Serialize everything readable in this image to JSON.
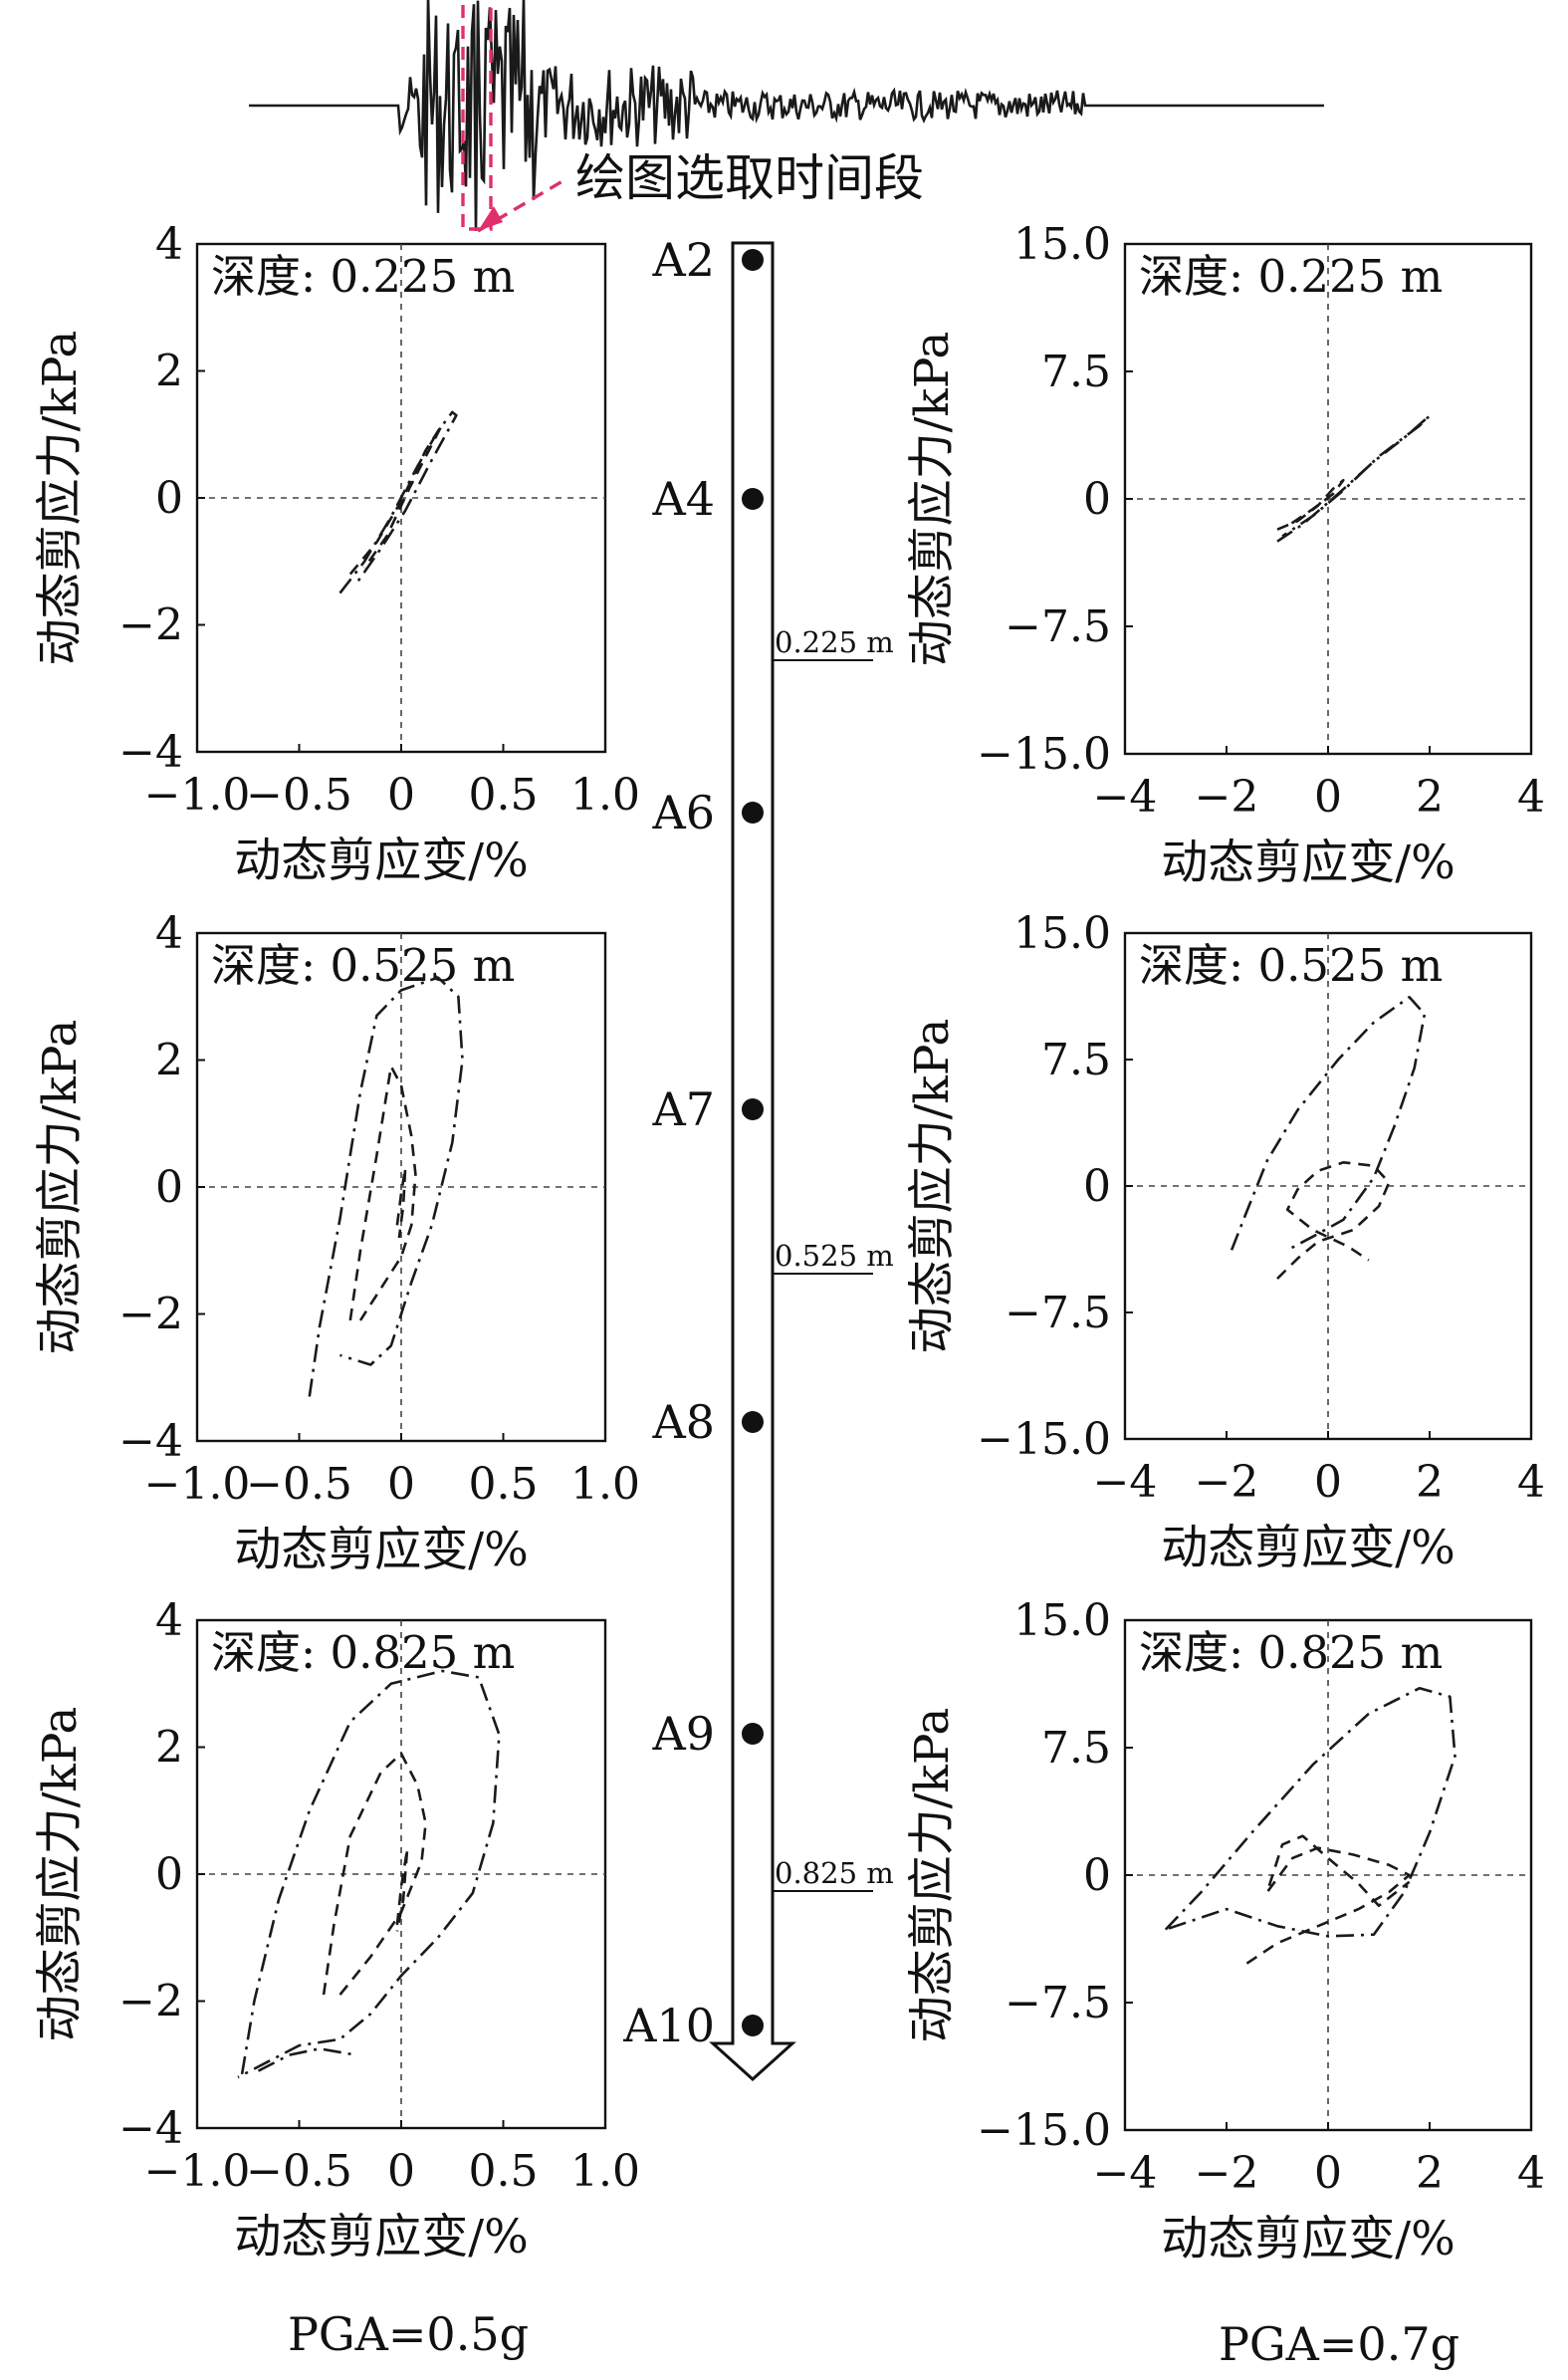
{
  "annotation": {
    "selection_label": "绘图选取时间段"
  },
  "column": {
    "sensors": [
      "A2",
      "A4",
      "A6",
      "A7",
      "A8",
      "A9",
      "A10"
    ],
    "depth_markers": [
      "0.225 m",
      "0.525 m",
      "0.825 m"
    ]
  },
  "pga_labels": {
    "left": "PGA=0.5g",
    "right": "PGA=0.7g"
  },
  "colors": {
    "line": "#1a1a1a",
    "selection": "#e0306a",
    "axis": "#111111"
  },
  "chart_data": [
    {
      "type": "line",
      "column": "PGA=0.5g",
      "depth_label": "深度: 0.225 m",
      "xlabel": "动态剪应变/%",
      "ylabel": "动态剪应力/kPa",
      "xlim": [
        -1.0,
        1.0
      ],
      "ylim": [
        -4,
        4
      ],
      "xticks": [
        "−1.0",
        "−0.5",
        "0",
        "0.5",
        "1.0"
      ],
      "yticks": [
        "4",
        "2",
        "0",
        "−2",
        "−4"
      ],
      "series": [
        {
          "style": "dashdot",
          "points": [
            [
              -0.3,
              -1.5
            ],
            [
              -0.18,
              -1.0
            ],
            [
              -0.05,
              -0.3
            ],
            [
              0.08,
              0.5
            ],
            [
              0.18,
              1.05
            ],
            [
              0.25,
              1.35
            ],
            [
              0.27,
              1.3
            ],
            [
              0.15,
              0.6
            ],
            [
              0.02,
              -0.2
            ],
            [
              -0.1,
              -0.8
            ],
            [
              -0.22,
              -1.35
            ]
          ]
        },
        {
          "style": "dashed",
          "points": [
            [
              -0.25,
              -1.2
            ],
            [
              -0.12,
              -0.7
            ],
            [
              0.0,
              -0.05
            ],
            [
              0.12,
              0.75
            ],
            [
              0.2,
              1.15
            ],
            [
              0.16,
              0.9
            ],
            [
              0.04,
              0.15
            ],
            [
              -0.07,
              -0.6
            ],
            [
              -0.18,
              -1.1
            ]
          ]
        }
      ]
    },
    {
      "type": "line",
      "column": "PGA=0.5g",
      "depth_label": "深度: 0.525 m",
      "xlabel": "动态剪应变/%",
      "ylabel": "动态剪应力/kPa",
      "xlim": [
        -1.0,
        1.0
      ],
      "ylim": [
        -4,
        4
      ],
      "xticks": [
        "−1.0",
        "−0.5",
        "0",
        "0.5",
        "1.0"
      ],
      "yticks": [
        "4",
        "2",
        "0",
        "−2",
        "−4"
      ],
      "series": [
        {
          "style": "dashdot",
          "points": [
            [
              -0.45,
              -3.3
            ],
            [
              -0.4,
              -2.2
            ],
            [
              -0.3,
              -0.5
            ],
            [
              -0.2,
              1.5
            ],
            [
              -0.12,
              2.7
            ],
            [
              0.0,
              3.1
            ],
            [
              0.18,
              3.3
            ],
            [
              0.28,
              3.0
            ],
            [
              0.3,
              2.0
            ],
            [
              0.25,
              0.7
            ],
            [
              0.15,
              -0.6
            ],
            [
              0.05,
              -1.5
            ],
            [
              -0.05,
              -2.5
            ],
            [
              -0.15,
              -2.8
            ],
            [
              -0.3,
              -2.65
            ]
          ]
        },
        {
          "style": "dashed",
          "points": [
            [
              -0.25,
              -2.1
            ],
            [
              -0.2,
              -1.0
            ],
            [
              -0.12,
              0.5
            ],
            [
              -0.05,
              1.9
            ],
            [
              0.0,
              1.6
            ],
            [
              0.05,
              0.8
            ],
            [
              0.07,
              0.2
            ],
            [
              0.05,
              -0.6
            ],
            [
              0.0,
              -1.1
            ],
            [
              -0.1,
              -1.6
            ],
            [
              -0.2,
              -2.1
            ]
          ]
        },
        {
          "style": "dashed",
          "points": [
            [
              -0.02,
              -0.6
            ],
            [
              0.0,
              -0.1
            ],
            [
              0.02,
              0.3
            ],
            [
              0.01,
              -0.3
            ],
            [
              -0.01,
              -0.8
            ]
          ]
        }
      ]
    },
    {
      "type": "line",
      "column": "PGA=0.5g",
      "depth_label": "深度: 0.825 m",
      "xlabel": "动态剪应变/%",
      "ylabel": "动态剪应力/kPa",
      "xlim": [
        -1.0,
        1.0
      ],
      "ylim": [
        -4,
        4
      ],
      "xticks": [
        "−1.0",
        "−0.5",
        "0",
        "0.5",
        "1.0"
      ],
      "yticks": [
        "4",
        "2",
        "0",
        "−2",
        "−4"
      ],
      "series": [
        {
          "style": "dashdot",
          "points": [
            [
              -0.78,
              -3.15
            ],
            [
              -0.72,
              -2.0
            ],
            [
              -0.6,
              -0.4
            ],
            [
              -0.45,
              1.0
            ],
            [
              -0.25,
              2.4
            ],
            [
              -0.05,
              3.0
            ],
            [
              0.2,
              3.2
            ],
            [
              0.38,
              3.1
            ],
            [
              0.48,
              2.2
            ],
            [
              0.45,
              0.8
            ],
            [
              0.35,
              -0.3
            ],
            [
              0.18,
              -1.0
            ],
            [
              0.0,
              -1.6
            ],
            [
              -0.15,
              -2.2
            ],
            [
              -0.3,
              -2.6
            ],
            [
              -0.5,
              -2.7
            ],
            [
              -0.8,
              -3.2
            ]
          ]
        },
        {
          "style": "dashdot",
          "points": [
            [
              -0.7,
              -3.1
            ],
            [
              -0.55,
              -2.85
            ],
            [
              -0.4,
              -2.75
            ],
            [
              -0.22,
              -2.85
            ]
          ]
        },
        {
          "style": "dashed",
          "points": [
            [
              -0.38,
              -1.9
            ],
            [
              -0.33,
              -0.8
            ],
            [
              -0.25,
              0.6
            ],
            [
              -0.1,
              1.6
            ],
            [
              0.0,
              1.9
            ],
            [
              0.08,
              1.4
            ],
            [
              0.12,
              0.8
            ],
            [
              0.1,
              0.2
            ],
            [
              0.0,
              -0.6
            ],
            [
              -0.15,
              -1.3
            ],
            [
              -0.3,
              -1.9
            ]
          ]
        },
        {
          "style": "dashed",
          "points": [
            [
              -0.02,
              -0.8
            ],
            [
              0.0,
              -0.2
            ],
            [
              0.03,
              0.4
            ],
            [
              0.01,
              -0.4
            ],
            [
              -0.02,
              -0.9
            ]
          ]
        }
      ]
    },
    {
      "type": "line",
      "column": "PGA=0.7g",
      "depth_label": "深度: 0.225 m",
      "xlabel": "动态剪应变/%",
      "ylabel": "动态剪应力/kPa",
      "xlim": [
        -4,
        4
      ],
      "ylim": [
        -15.0,
        15.0
      ],
      "xticks": [
        "−4",
        "−2",
        "0",
        "2",
        "4"
      ],
      "yticks": [
        "15.0",
        "7.5",
        "0",
        "−7.5",
        "−15.0"
      ],
      "series": [
        {
          "style": "dashdot",
          "points": [
            [
              -1.0,
              -2.5
            ],
            [
              -0.5,
              -1.5
            ],
            [
              0.2,
              0.3
            ],
            [
              0.9,
              2.2
            ],
            [
              1.5,
              3.6
            ],
            [
              2.0,
              4.9
            ],
            [
              1.8,
              4.3
            ],
            [
              1.0,
              2.5
            ],
            [
              0.3,
              0.5
            ],
            [
              -0.3,
              -1.0
            ],
            [
              -0.9,
              -2.2
            ]
          ]
        },
        {
          "style": "dashed",
          "points": [
            [
              -1.0,
              -1.8
            ],
            [
              -0.6,
              -1.3
            ],
            [
              -0.2,
              -0.4
            ],
            [
              0.1,
              0.6
            ],
            [
              0.3,
              1.1
            ],
            [
              0.1,
              0.3
            ],
            [
              -0.3,
              -0.6
            ],
            [
              -0.8,
              -1.6
            ]
          ]
        }
      ]
    },
    {
      "type": "line",
      "column": "PGA=0.7g",
      "depth_label": "深度: 0.525 m",
      "xlabel": "动态剪应变/%",
      "ylabel": "动态剪应力/kPa",
      "xlim": [
        -4,
        4
      ],
      "ylim": [
        -15.0,
        15.0
      ],
      "xticks": [
        "−4",
        "−2",
        "0",
        "2",
        "4"
      ],
      "yticks": [
        "15.0",
        "7.5",
        "0",
        "−7.5",
        "−15.0"
      ],
      "series": [
        {
          "style": "dashdot",
          "points": [
            [
              -1.9,
              -3.8
            ],
            [
              -1.6,
              -1.5
            ],
            [
              -1.2,
              1.5
            ],
            [
              -0.6,
              4.5
            ],
            [
              0.2,
              7.5
            ],
            [
              0.9,
              9.7
            ],
            [
              1.6,
              11.2
            ],
            [
              1.9,
              10.2
            ],
            [
              1.7,
              7.0
            ],
            [
              1.3,
              3.5
            ],
            [
              0.9,
              0.5
            ],
            [
              0.3,
              -2.0
            ],
            [
              -0.3,
              -3.0
            ],
            [
              -0.8,
              -3.8
            ]
          ]
        },
        {
          "style": "dashed",
          "points": [
            [
              -1.0,
              -5.5
            ],
            [
              -0.6,
              -4.3
            ],
            [
              -0.2,
              -3.3
            ],
            [
              0.5,
              -2.6
            ],
            [
              1.0,
              -1.2
            ],
            [
              1.2,
              0.2
            ],
            [
              0.9,
              1.2
            ],
            [
              0.3,
              1.4
            ],
            [
              -0.2,
              0.9
            ],
            [
              -0.6,
              -0.2
            ],
            [
              -0.8,
              -1.4
            ],
            [
              -0.3,
              -2.6
            ],
            [
              0.4,
              -3.6
            ],
            [
              0.8,
              -4.4
            ]
          ]
        }
      ]
    },
    {
      "type": "line",
      "column": "PGA=0.7g",
      "depth_label": "深度: 0.825 m",
      "xlabel": "动态剪应变/%",
      "ylabel": "动态剪应力/kPa",
      "xlim": [
        -4,
        4
      ],
      "ylim": [
        -15.0,
        15.0
      ],
      "xticks": [
        "−4",
        "−2",
        "0",
        "2",
        "4"
      ],
      "yticks": [
        "15.0",
        "7.5",
        "0",
        "−7.5",
        "−15.0"
      ],
      "series": [
        {
          "style": "dashdot",
          "points": [
            [
              -3.2,
              -3.2
            ],
            [
              -2.5,
              -1.0
            ],
            [
              -1.5,
              2.5
            ],
            [
              -0.3,
              6.5
            ],
            [
              0.8,
              9.5
            ],
            [
              1.8,
              11.0
            ],
            [
              2.4,
              10.5
            ],
            [
              2.5,
              7.0
            ],
            [
              2.0,
              2.5
            ],
            [
              1.5,
              -1.0
            ],
            [
              0.9,
              -3.5
            ],
            [
              0.0,
              -3.6
            ],
            [
              -1.0,
              -3.0
            ],
            [
              -2.0,
              -2.0
            ],
            [
              -3.2,
              -3.2
            ]
          ]
        },
        {
          "style": "dashed",
          "points": [
            [
              -1.6,
              -5.2
            ],
            [
              -1.0,
              -4.0
            ],
            [
              -0.2,
              -3.0
            ],
            [
              0.6,
              -2.0
            ],
            [
              1.2,
              -1.0
            ],
            [
              1.6,
              0.0
            ],
            [
              1.2,
              0.6
            ],
            [
              0.5,
              1.2
            ],
            [
              -0.2,
              1.6
            ],
            [
              -0.7,
              1.0
            ],
            [
              -1.0,
              -0.2
            ],
            [
              -1.2,
              -1.0
            ],
            [
              -0.9,
              1.8
            ],
            [
              -0.5,
              2.3
            ],
            [
              0.0,
              1.0
            ],
            [
              0.6,
              -0.5
            ],
            [
              1.0,
              -1.8
            ],
            [
              1.6,
              -0.4
            ]
          ]
        }
      ]
    }
  ]
}
